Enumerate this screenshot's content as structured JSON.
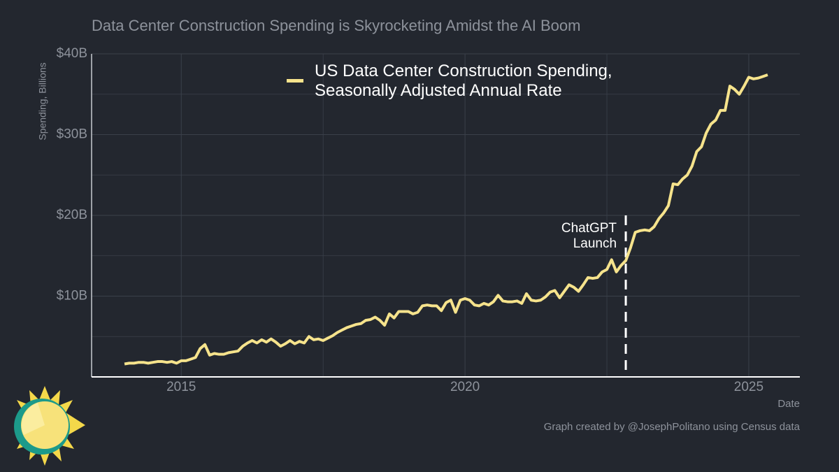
{
  "chart_data": {
    "type": "line",
    "subtitle": "Data Center Construction Spending is Skyrocketing Amidst the AI Boom",
    "y_label": "Spending, Billions",
    "x_label": "Date",
    "caption": "Graph created by @JosephPolitano using Census data",
    "xlim": [
      2013.42,
      2025.9
    ],
    "xticks": [
      2015,
      2020,
      2025
    ],
    "ylim": [
      0,
      40
    ],
    "yticks": [
      {
        "value": 10,
        "label": "$10B"
      },
      {
        "value": 20,
        "label": "$20B"
      },
      {
        "value": 30,
        "label": "$30B"
      },
      {
        "value": 40,
        "label": "$40B"
      }
    ],
    "grid": true,
    "minor_grid": true,
    "annotation": {
      "lines": [
        "ChatGPT",
        "Launch"
      ],
      "x": 2022.833,
      "y": 20
    },
    "x": [
      2014,
      2014.083,
      2014.167,
      2014.25,
      2014.333,
      2014.417,
      2014.5,
      2014.583,
      2014.667,
      2014.75,
      2014.833,
      2014.917,
      2015,
      2015.083,
      2015.167,
      2015.25,
      2015.333,
      2015.417,
      2015.5,
      2015.583,
      2015.667,
      2015.75,
      2015.833,
      2015.917,
      2016,
      2016.083,
      2016.167,
      2016.25,
      2016.333,
      2016.417,
      2016.5,
      2016.583,
      2016.667,
      2016.75,
      2016.833,
      2016.917,
      2017,
      2017.083,
      2017.167,
      2017.25,
      2017.333,
      2017.417,
      2017.5,
      2017.583,
      2017.667,
      2017.75,
      2017.833,
      2017.917,
      2018,
      2018.083,
      2018.167,
      2018.25,
      2018.333,
      2018.417,
      2018.5,
      2018.583,
      2018.667,
      2018.75,
      2018.833,
      2018.917,
      2019,
      2019.083,
      2019.167,
      2019.25,
      2019.333,
      2019.417,
      2019.5,
      2019.583,
      2019.667,
      2019.75,
      2019.833,
      2019.917,
      2020,
      2020.083,
      2020.167,
      2020.25,
      2020.333,
      2020.417,
      2020.5,
      2020.583,
      2020.667,
      2020.75,
      2020.833,
      2020.917,
      2021,
      2021.083,
      2021.167,
      2021.25,
      2021.333,
      2021.417,
      2021.5,
      2021.583,
      2021.667,
      2021.75,
      2021.833,
      2021.917,
      2022,
      2022.083,
      2022.167,
      2022.25,
      2022.333,
      2022.417,
      2022.5,
      2022.583,
      2022.667,
      2022.75,
      2022.833,
      2022.917,
      2023,
      2023.083,
      2023.167,
      2023.25,
      2023.333,
      2023.417,
      2023.5,
      2023.583,
      2023.667,
      2023.75,
      2023.833,
      2023.917,
      2024,
      2024.083,
      2024.167,
      2024.25,
      2024.333,
      2024.417,
      2024.5,
      2024.583,
      2024.667,
      2024.75,
      2024.833,
      2024.917,
      2025,
      2025.083,
      2025.167,
      2025.25,
      2025.333
    ],
    "series": [
      {
        "name": "US Data Center Construction Spending, Seasonally Adjusted Annual Rate",
        "color": "#f6e38c",
        "values": [
          1.6,
          1.7,
          1.7,
          1.8,
          1.8,
          1.7,
          1.8,
          1.9,
          1.9,
          1.8,
          1.9,
          1.7,
          2.0,
          2.0,
          2.2,
          2.4,
          3.5,
          4.0,
          2.7,
          2.9,
          2.8,
          2.8,
          3.0,
          3.1,
          3.2,
          3.8,
          4.2,
          4.5,
          4.2,
          4.6,
          4.3,
          4.7,
          4.3,
          3.8,
          4.1,
          4.5,
          4.1,
          4.4,
          4.2,
          5.0,
          4.6,
          4.7,
          4.5,
          4.8,
          5.1,
          5.5,
          5.8,
          6.1,
          6.3,
          6.5,
          6.6,
          7.0,
          7.1,
          7.4,
          7.0,
          6.4,
          7.8,
          7.3,
          8.1,
          8.1,
          8.1,
          7.8,
          8.0,
          8.8,
          8.9,
          8.8,
          8.8,
          8.2,
          9.2,
          9.5,
          8.0,
          9.5,
          9.7,
          9.5,
          8.9,
          8.8,
          9.1,
          8.9,
          9.3,
          10.1,
          9.4,
          9.3,
          9.3,
          9.4,
          9.1,
          10.3,
          9.5,
          9.4,
          9.5,
          9.9,
          10.5,
          10.7,
          9.8,
          10.6,
          11.4,
          11.1,
          10.6,
          11.4,
          12.3,
          12.2,
          12.3,
          13.0,
          13.3,
          14.5,
          13.0,
          13.8,
          14.4,
          16.0,
          17.9,
          18.1,
          18.2,
          18.1,
          18.6,
          19.6,
          20.3,
          21.2,
          23.9,
          23.8,
          24.5,
          25.0,
          26.1,
          27.9,
          28.5,
          30.2,
          31.3,
          31.8,
          33.0,
          33.0,
          36.0,
          35.6,
          35.0,
          36.0,
          37.1,
          36.9,
          37.0,
          37.2,
          37.4
        ]
      }
    ]
  }
}
